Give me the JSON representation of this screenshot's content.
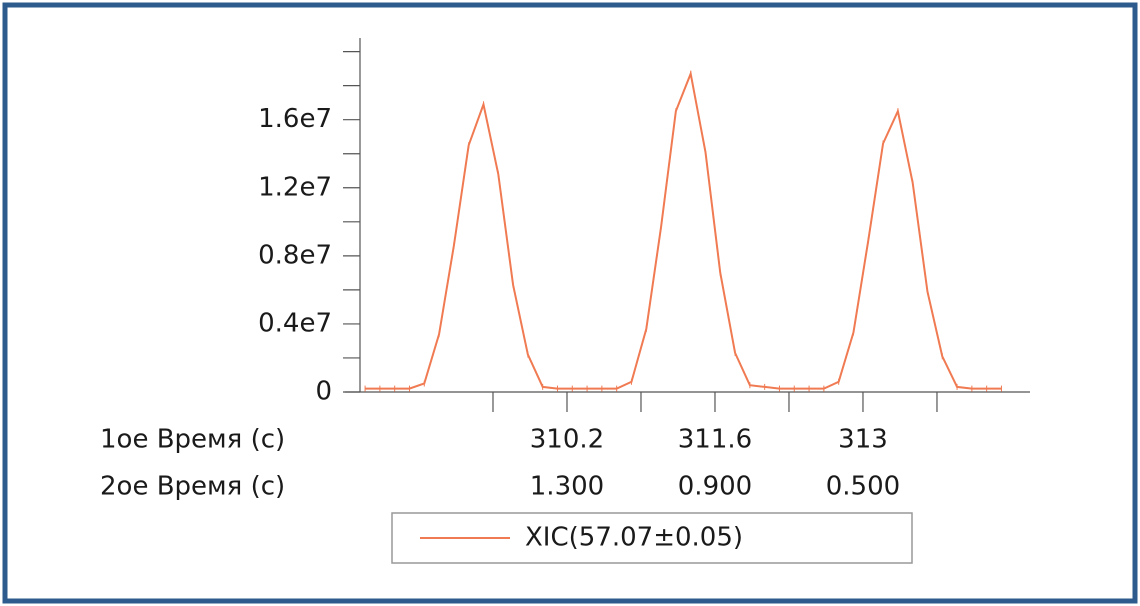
{
  "chart_data": {
    "type": "line",
    "x_label": "1ое Время (с)",
    "x2_label": "2ое Время (с)",
    "x": [
      308.29,
      308.43,
      308.57,
      308.71,
      308.85,
      308.99,
      309.13,
      309.27,
      309.41,
      309.55,
      309.69,
      309.83,
      309.97,
      310.11,
      310.25,
      310.39,
      310.53,
      310.67,
      310.81,
      310.95,
      311.09,
      311.23,
      311.37,
      311.51,
      311.65,
      311.79,
      311.93,
      312.07,
      312.21,
      312.35,
      312.49,
      312.63,
      312.77,
      312.91,
      313.05,
      313.19,
      313.33,
      313.47,
      313.61,
      313.75,
      313.89,
      314.03,
      314.17,
      314.31
    ],
    "series": [
      {
        "name": "XIC(57.07±0.05)",
        "color": "#f07a52",
        "values": [
          200000,
          200000,
          200000,
          200000,
          500000,
          3400000,
          8600000,
          14500000,
          16900000,
          12800000,
          6300000,
          2200000,
          300000,
          200000,
          200000,
          200000,
          200000,
          200000,
          600000,
          3700000,
          9700000,
          16500000,
          18700000,
          14100000,
          7000000,
          2300000,
          400000,
          300000,
          200000,
          200000,
          200000,
          200000,
          600000,
          3500000,
          8900000,
          14600000,
          16500000,
          12300000,
          5900000,
          2100000,
          300000,
          200000,
          200000,
          200000
        ]
      }
    ],
    "xlim": [
      308.1,
      314.58
    ],
    "ylim": [
      0,
      20800000
    ],
    "yticks": [
      0,
      {
        "value": 4000000,
        "label": "0.4e7"
      },
      {
        "value": 8000000,
        "label": "0.8e7"
      },
      {
        "value": 12000000,
        "label": "1.2e7"
      },
      {
        "value": 16000000,
        "label": "1.6e7"
      }
    ],
    "yminor_ticks": [
      2000000,
      6000000,
      10000000,
      14000000,
      18000000,
      20000000
    ],
    "xticks": [
      310.2,
      311.6,
      313
    ],
    "x2ticks": [
      {
        "value": 310.2,
        "label": "1.300"
      },
      {
        "value": 311.6,
        "label": "0.900"
      },
      {
        "value": 313,
        "label": "0.500"
      }
    ],
    "xminor_ticks": [
      309.5,
      310.9,
      312.3,
      313.7
    ]
  }
}
